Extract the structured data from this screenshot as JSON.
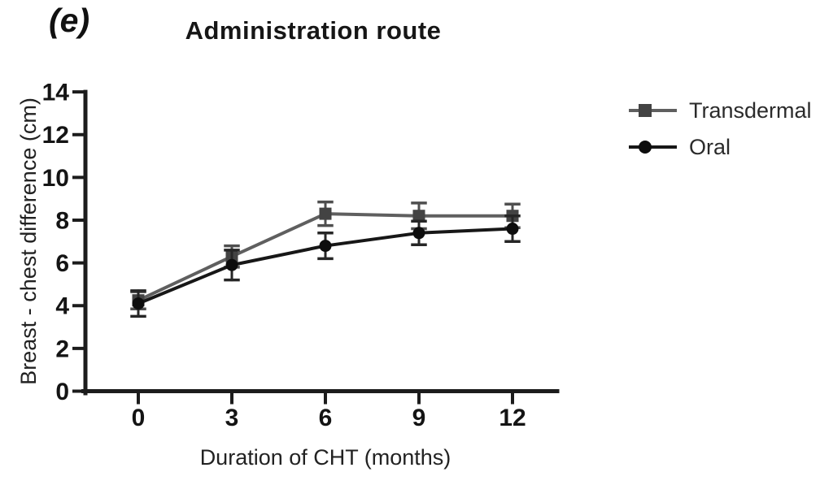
{
  "figure": {
    "panel_label": "(e)",
    "background_color": "#ffffff"
  },
  "chart_data": {
    "type": "line",
    "title": "Administration route",
    "xlabel": "Duration of CHT (months)",
    "ylabel": "Breast - chest difference (cm)",
    "x": [
      0,
      3,
      6,
      9,
      12
    ],
    "xticks": [
      "0",
      "3",
      "6",
      "9",
      "12"
    ],
    "yticks": [
      "0",
      "2",
      "4",
      "6",
      "8",
      "10",
      "12",
      "14"
    ],
    "ytick_values": [
      0,
      2,
      4,
      6,
      8,
      10,
      12,
      14
    ],
    "ylim": [
      0,
      14
    ],
    "grid": false,
    "error_bars": true,
    "legend_position": "right-outside",
    "axis_color": "#1c1c1c",
    "tick_label_color": "#141414",
    "series": [
      {
        "name": "Transdermal",
        "marker": "square",
        "values": [
          4.25,
          6.3,
          8.3,
          8.2,
          8.2
        ],
        "errors": [
          0.4,
          0.5,
          0.55,
          0.6,
          0.55
        ],
        "line_color": "#5f5f5f",
        "marker_color": "#434343",
        "error_color": "#4f4f4f"
      },
      {
        "name": "Oral",
        "marker": "circle",
        "values": [
          4.1,
          5.9,
          6.8,
          7.4,
          7.6
        ],
        "errors": [
          0.6,
          0.7,
          0.6,
          0.55,
          0.6
        ],
        "line_color": "#171717",
        "marker_color": "#0d0d0d",
        "error_color": "#262626"
      }
    ]
  }
}
